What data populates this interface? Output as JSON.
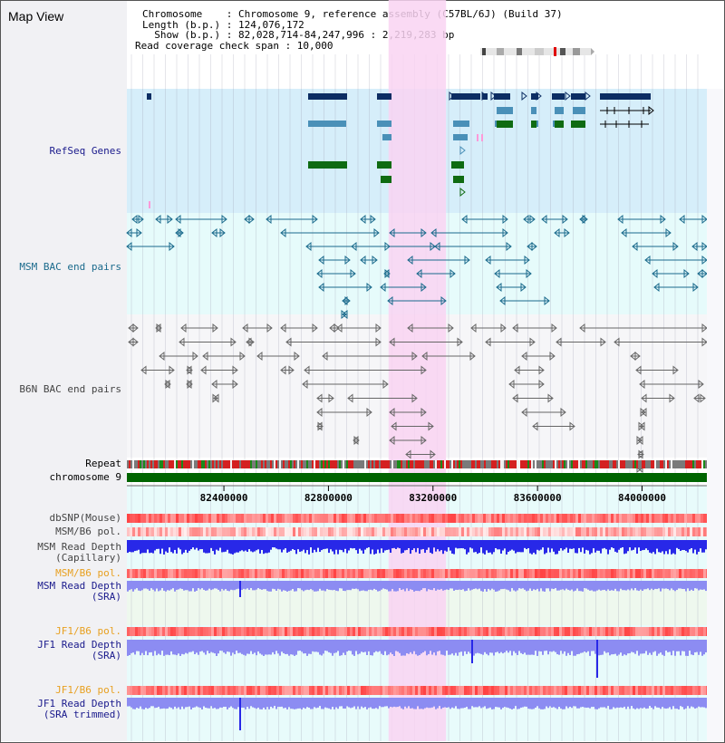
{
  "app": {
    "title": "Map View"
  },
  "info": {
    "chromosome_line": "Chromosome    : Chromosome 9, reference assembly (C57BL/6J) (Build 37)",
    "length_line": "Length (b.p.) : 124,076,172",
    "show_line": "  Show (b.p.) : 82,028,714-84,247,996 : 2,219,283 bp",
    "coverage_line": "Read coverage check span : 10,000"
  },
  "axis": {
    "ticks": [
      {
        "value": 82400000,
        "label": "82400000"
      },
      {
        "value": 82800000,
        "label": "82800000"
      },
      {
        "value": 83200000,
        "label": "83200000"
      },
      {
        "value": 83600000,
        "label": "83600000"
      },
      {
        "value": 84000000,
        "label": "84000000"
      }
    ],
    "start": 82028714,
    "end": 84247996
  },
  "highlight_region": {
    "start": 83030000,
    "end": 83250000
  },
  "tracks": {
    "refseq": {
      "label": "RefSeq Genes",
      "color": "#1a1a8c"
    },
    "msm_bac": {
      "label": "MSM BAC end pairs",
      "color": "#1a6a8c"
    },
    "b6n_bac": {
      "label": "B6N BAC end pairs",
      "color": "#333333"
    },
    "repeat": {
      "label": "Repeat"
    },
    "chromosome": {
      "label": "chromosome 9",
      "color": "#006400"
    },
    "dbsnp": {
      "label": "dbSNP(Mouse)"
    },
    "msm_b6_pol_1": {
      "label": "MSM/B6 pol."
    },
    "msm_read_capillary": {
      "label_line1": "MSM Read Depth",
      "label_line2": "(Capillary)"
    },
    "msm_b6_pol_2": {
      "label": "MSM/B6 pol."
    },
    "msm_read_sra": {
      "label_line1": "MSM Read Depth",
      "label_line2": "(SRA)"
    },
    "jf1_b6_pol_1": {
      "label": "JF1/B6 pol."
    },
    "jf1_read_sra": {
      "label_line1": "JF1 Read Depth",
      "label_line2": "(SRA)"
    },
    "jf1_b6_pol_2": {
      "label": "JF1/B6 pol."
    },
    "jf1_read_sra_trimmed": {
      "label_line1": "JF1 Read Depth",
      "label_line2": "(SRA trimmed)"
    }
  },
  "colors": {
    "refseq_bg": "#d6eefa",
    "bac_bg": "#e6fbfb",
    "highlight": "#f9d4f2",
    "gene_dark": "#0c2d63",
    "gene_light": "#4a90b8",
    "gene_green": "#0f6b12",
    "label_navy": "#1a1a8c",
    "label_teal": "#1a6a8c",
    "label_gray": "#444444",
    "label_orange": "#e8a020",
    "depth_blue": "#2828e8",
    "depth_light": "#8c8cf2"
  }
}
